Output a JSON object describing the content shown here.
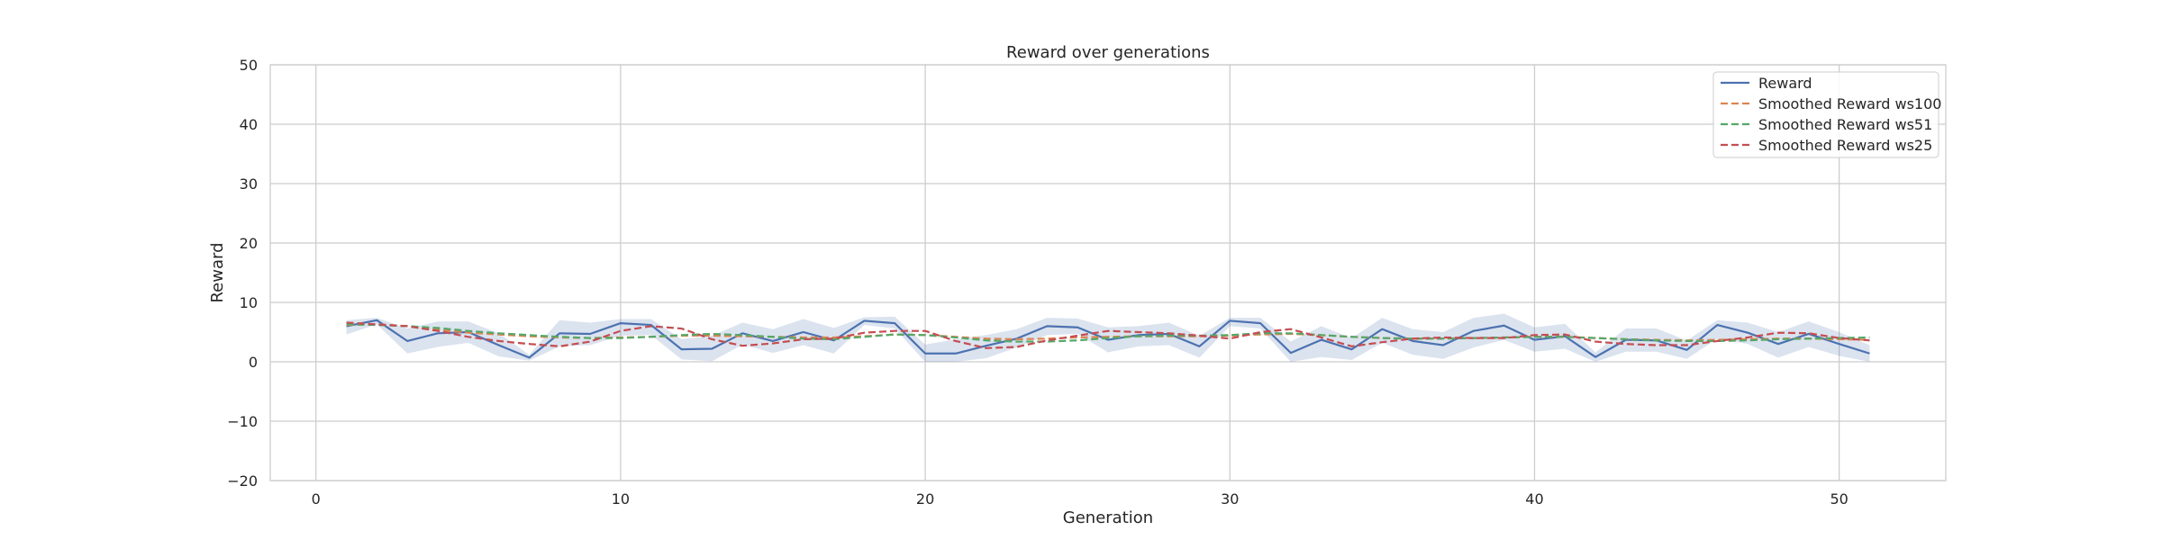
{
  "chart_data": {
    "type": "line",
    "title": "Reward over generations",
    "xlabel": "Generation",
    "ylabel": "Reward",
    "xlim": [
      -1.5,
      53.5
    ],
    "ylim": [
      -20,
      50
    ],
    "xticks": [
      0,
      10,
      20,
      30,
      40,
      50
    ],
    "yticks": [
      -20,
      -10,
      0,
      10,
      20,
      30,
      40,
      50
    ],
    "grid": true,
    "legend_position": "top-right",
    "x": [
      1,
      2,
      3,
      4,
      5,
      6,
      7,
      8,
      9,
      10,
      11,
      12,
      13,
      14,
      15,
      16,
      17,
      18,
      19,
      20,
      21,
      22,
      23,
      24,
      25,
      26,
      27,
      28,
      29,
      30,
      31,
      32,
      33,
      34,
      35,
      36,
      37,
      38,
      39,
      40,
      41,
      42,
      43,
      44,
      45,
      46,
      47,
      48,
      49,
      50,
      51
    ],
    "band": {
      "of_series": "Reward",
      "color": "#4c72b0",
      "opacity": 0.2,
      "lower": [
        4.6,
        6.3,
        1.4,
        2.5,
        3.2,
        0.9,
        0.2,
        2.6,
        2.8,
        4.4,
        4.5,
        0.4,
        0.1,
        2.9,
        1.5,
        2.8,
        1.4,
        6.2,
        5.6,
        0.0,
        0.0,
        0.6,
        2.4,
        4.5,
        4.7,
        1.6,
        2.6,
        2.8,
        0.7,
        6.0,
        5.6,
        0.0,
        0.8,
        0.3,
        3.2,
        1.2,
        0.5,
        2.4,
        3.7,
        1.7,
        2.2,
        0.0,
        1.7,
        1.7,
        0.5,
        3.9,
        3.0,
        0.7,
        2.5,
        1.0,
        0.0
      ],
      "upper": [
        7.0,
        7.4,
        5.6,
        6.8,
        6.8,
        4.8,
        1.2,
        7.0,
        6.6,
        7.2,
        7.2,
        3.8,
        4.4,
        6.6,
        5.5,
        7.2,
        5.7,
        7.5,
        7.6,
        2.9,
        3.8,
        4.5,
        5.5,
        7.4,
        7.3,
        5.8,
        6.0,
        6.6,
        4.4,
        7.4,
        7.4,
        3.4,
        6.0,
        4.0,
        7.4,
        5.5,
        5.0,
        7.4,
        8.1,
        5.8,
        6.4,
        1.6,
        5.6,
        5.6,
        3.6,
        7.0,
        6.6,
        5.0,
        6.8,
        5.0,
        2.8
      ]
    },
    "series": [
      {
        "name": "Reward",
        "color": "#4c72b0",
        "dash": "solid",
        "values": [
          6.0,
          7.0,
          3.5,
          4.8,
          5.0,
          2.8,
          0.7,
          4.8,
          4.7,
          6.5,
          6.2,
          2.1,
          2.2,
          4.8,
          3.5,
          5.0,
          3.6,
          6.9,
          6.5,
          1.4,
          1.4,
          2.7,
          3.9,
          6.0,
          5.8,
          3.7,
          4.5,
          4.7,
          2.6,
          6.9,
          6.5,
          1.5,
          3.7,
          2.1,
          5.5,
          3.5,
          2.8,
          5.2,
          6.1,
          3.7,
          4.3,
          0.8,
          3.7,
          3.6,
          2.0,
          6.2,
          4.9,
          3.0,
          4.7,
          3.0,
          1.4
        ]
      },
      {
        "name": "Smoothed Reward ws100",
        "color": "#dd8452",
        "dash": "dashed",
        "values": [
          6.2,
          6.3,
          6.0,
          5.4,
          4.9,
          4.6,
          4.3,
          4.1,
          4.0,
          4.1,
          4.2,
          4.4,
          4.4,
          4.3,
          4.2,
          4.1,
          4.1,
          4.3,
          4.6,
          4.5,
          4.2,
          3.9,
          3.8,
          3.9,
          4.1,
          4.2,
          4.3,
          4.3,
          4.3,
          4.4,
          4.6,
          4.7,
          4.5,
          4.2,
          4.0,
          3.9,
          3.9,
          4.0,
          4.1,
          4.2,
          4.2,
          4.0,
          3.8,
          3.7,
          3.6,
          3.7,
          3.8,
          3.9,
          3.9,
          3.8,
          3.7
        ]
      },
      {
        "name": "Smoothed Reward ws51",
        "color": "#55a868",
        "dash": "dashed",
        "values": [
          6.3,
          6.2,
          6.0,
          5.7,
          5.2,
          4.8,
          4.5,
          4.2,
          4.0,
          4.0,
          4.2,
          4.5,
          4.7,
          4.5,
          4.2,
          3.9,
          3.8,
          4.2,
          4.6,
          4.5,
          4.1,
          3.6,
          3.4,
          3.4,
          3.6,
          4.0,
          4.3,
          4.4,
          4.4,
          4.5,
          4.8,
          4.8,
          4.5,
          4.2,
          4.0,
          3.9,
          3.9,
          4.0,
          4.1,
          4.2,
          4.2,
          4.0,
          3.8,
          3.6,
          3.5,
          3.5,
          3.6,
          3.8,
          3.9,
          4.0,
          4.1
        ]
      },
      {
        "name": "Smoothed Reward ws25",
        "color": "#c44e52",
        "dash": "dashed",
        "values": [
          6.6,
          6.3,
          6.0,
          5.2,
          4.2,
          3.5,
          3.0,
          2.6,
          3.4,
          5.2,
          6.0,
          5.6,
          3.8,
          2.7,
          3.1,
          3.8,
          3.9,
          4.9,
          5.2,
          5.2,
          3.5,
          2.3,
          2.5,
          3.6,
          4.4,
          5.2,
          5.0,
          4.8,
          4.4,
          3.9,
          5.0,
          5.5,
          4.1,
          2.6,
          3.3,
          3.9,
          4.1,
          4.0,
          4.0,
          4.5,
          4.6,
          3.4,
          3.0,
          2.8,
          2.8,
          3.5,
          4.1,
          4.9,
          4.8,
          4.0,
          3.6
        ]
      }
    ]
  }
}
